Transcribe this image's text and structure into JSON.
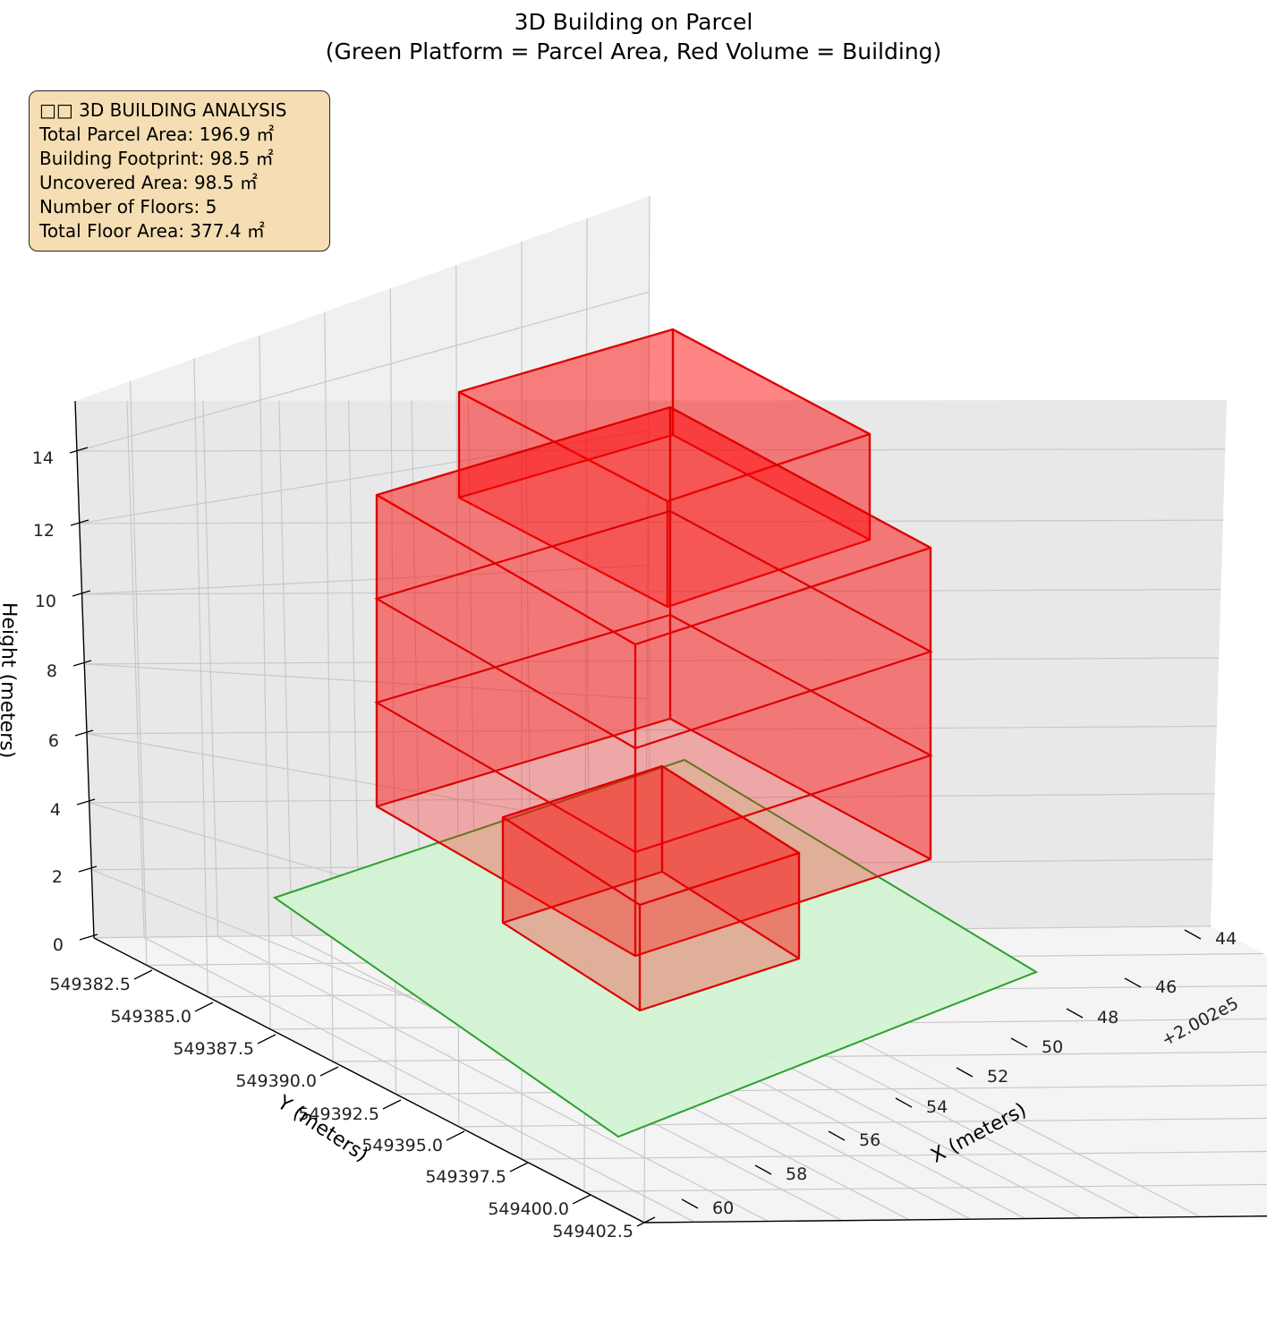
{
  "title": {
    "line1": "3D Building on Parcel",
    "line2": "(Green Platform = Parcel Area, Red Volume = Building)"
  },
  "info_box": {
    "lines": [
      "□□ 3D BUILDING ANALYSIS",
      "Total Parcel Area: 196.9 ㎡",
      "Building Footprint: 98.5 ㎡",
      "Uncovered Area: 98.5 ㎡",
      "Number of Floors: 5",
      "Total Floor Area: 377.4 ㎡"
    ]
  },
  "colors": {
    "parcel_fill": "#d3f2d3",
    "parcel_edge": "#2ca02c",
    "building_fill": "#ff0000",
    "building_edge": "#dd0000",
    "pane_left": "#f0f0f0",
    "pane_right": "#e8e8e8",
    "pane_floor": "#f4f4f4",
    "grid": "#c8c8c8",
    "info_box_bg": "#f5deb3"
  },
  "chart_data": {
    "type": "3d-volume",
    "title": "3D Building on Parcel\n(Green Platform = Parcel Area, Red Volume = Building)",
    "x_axis": {
      "label": "X (meters)",
      "offset_text": "+2.002e5",
      "ticks": [
        "44",
        "46",
        "48",
        "50",
        "52",
        "54",
        "56",
        "58",
        "60"
      ],
      "range": [
        200243,
        200261
      ]
    },
    "y_axis": {
      "label": "Y (meters)",
      "ticks": [
        "549382.5",
        "549385.0",
        "549387.5",
        "549390.0",
        "549392.5",
        "549395.0",
        "549397.5",
        "549400.0",
        "549402.5"
      ],
      "range": [
        549381.5,
        549403.5
      ]
    },
    "z_axis": {
      "label": "Height (meters)",
      "ticks": [
        "0",
        "2",
        "4",
        "6",
        "8",
        "10",
        "12",
        "14"
      ],
      "range": [
        0,
        15
      ]
    },
    "series": [
      {
        "name": "Parcel Area",
        "kind": "platform",
        "z": 0.3
      },
      {
        "name": "Building",
        "kind": "volume",
        "floors": 5,
        "floor_height": 3
      }
    ],
    "grid": true
  }
}
